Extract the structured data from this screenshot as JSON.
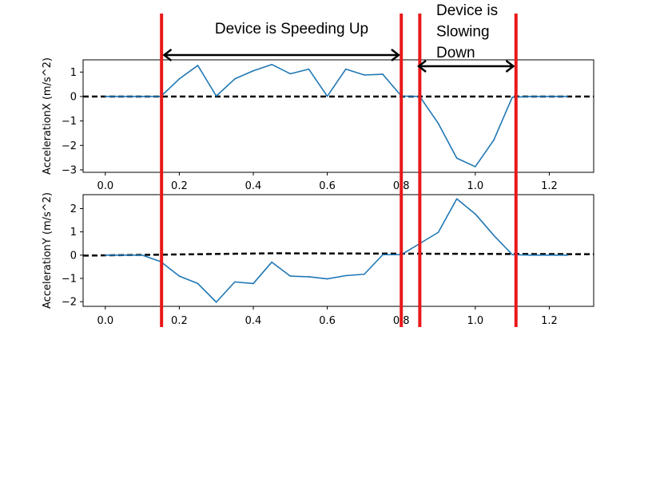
{
  "chart_data": [
    {
      "type": "line",
      "ylabel": "AccelerationX (m/s^2)",
      "xlim": [
        -0.06,
        1.32
      ],
      "ylim": [
        -3.1,
        1.5
      ],
      "xticks": [
        "0.0",
        "0.2",
        "0.4",
        "0.6",
        "0.8",
        "1.0",
        "1.2"
      ],
      "yticks": [
        "1",
        "0",
        "−1",
        "−2",
        "−3"
      ],
      "series": [
        {
          "color": "#1f77b4",
          "x": [
            0,
            0.05,
            0.1,
            0.15,
            0.2,
            0.25,
            0.3,
            0.35,
            0.4,
            0.45,
            0.5,
            0.55,
            0.6,
            0.65,
            0.7,
            0.75,
            0.8,
            0.85,
            0.9,
            0.95,
            1.0,
            1.05,
            1.1,
            1.15,
            1.2,
            1.25
          ],
          "y": [
            0,
            0,
            0,
            0,
            0.72,
            1.27,
            0.02,
            0.72,
            1.05,
            1.31,
            0.93,
            1.12,
            0.01,
            1.12,
            0.88,
            0.91,
            0.02,
            0,
            -1.1,
            -2.52,
            -2.87,
            -1.78,
            -0.03,
            0,
            0,
            0
          ]
        }
      ],
      "reference_line": {
        "y": 0,
        "style": "dashed",
        "color": "#000000"
      }
    },
    {
      "type": "line",
      "ylabel": "AccelerationY (m/s^2)",
      "xlim": [
        -0.06,
        1.32
      ],
      "ylim": [
        -2.2,
        2.6
      ],
      "xticks": [
        "0.0",
        "0.2",
        "0.4",
        "0.6",
        "0.8",
        "1.0",
        "1.2"
      ],
      "yticks": [
        "2",
        "1",
        "0",
        "−1",
        "−2"
      ],
      "series": [
        {
          "color": "#1f77b4",
          "x": [
            0,
            0.05,
            0.1,
            0.15,
            0.2,
            0.25,
            0.3,
            0.35,
            0.4,
            0.45,
            0.5,
            0.55,
            0.6,
            0.65,
            0.7,
            0.75,
            0.8,
            0.85,
            0.9,
            0.95,
            1.0,
            1.05,
            1.1,
            1.15,
            1.2,
            1.25
          ],
          "y": [
            0,
            0,
            0,
            -0.28,
            -0.9,
            -1.22,
            -2.02,
            -1.15,
            -1.22,
            -0.3,
            -0.9,
            -0.93,
            -1.02,
            -0.88,
            -0.82,
            0.02,
            0.02,
            0.5,
            0.98,
            2.42,
            1.77,
            0.85,
            0.02,
            0,
            0,
            0
          ]
        }
      ],
      "reference_line": {
        "points": [
          [
            -0.06,
            -0.02
          ],
          [
            0.45,
            0.08
          ],
          [
            1.32,
            0.04
          ]
        ],
        "style": "dashed",
        "color": "#000000"
      }
    }
  ],
  "annotations": {
    "speeding_up": {
      "lines": [
        "Device is Speeding Up"
      ],
      "span": [
        0.157,
        0.795
      ]
    },
    "slowing_down": {
      "lines": [
        "Device is",
        "Slowing",
        "Down"
      ],
      "span": [
        0.845,
        1.105
      ]
    },
    "marker_lines_x": [
      0.152,
      0.8,
      0.85,
      1.11
    ],
    "marker_color": "#e8191a"
  }
}
